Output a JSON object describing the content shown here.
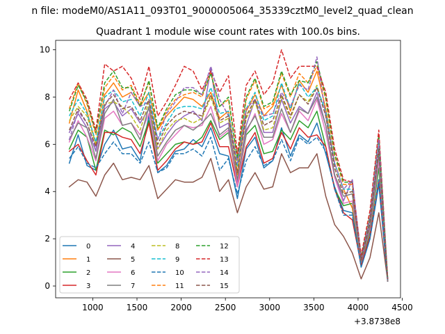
{
  "chart_data": {
    "type": "line",
    "suptitle": "n file: modeM0/AS1A11_093T01_9000005064_35339cztM0_level2_quad_clean",
    "title": "Quadrant 1 module wise count rates with 100.0s bins.",
    "xlabel": "",
    "ylabel": "",
    "x_offset_label": "+3.8738e8",
    "xlim": [
      580,
      4480
    ],
    "ylim": [
      -0.5,
      10.4
    ],
    "xticks": [
      1000,
      1500,
      2000,
      2500,
      3000,
      3500,
      4000,
      4500
    ],
    "yticks": [
      0,
      2,
      4,
      6,
      8,
      10
    ],
    "x": [
      735,
      835,
      935,
      1035,
      1135,
      1235,
      1335,
      1435,
      1535,
      1635,
      1735,
      1835,
      1935,
      2035,
      2135,
      2235,
      2335,
      2435,
      2535,
      2635,
      2735,
      2835,
      2935,
      3035,
      3135,
      3235,
      3335,
      3435,
      3535,
      3635,
      3735,
      3835,
      3935,
      4035,
      4135,
      4235,
      4335
    ],
    "legend_location": "lower-left",
    "series": [
      {
        "name": "0",
        "color": "#1f77b4",
        "dash": "solid",
        "values": [
          5.2,
          6.4,
          5.1,
          4.9,
          6.0,
          6.6,
          5.8,
          5.9,
          5.3,
          7.2,
          4.8,
          5.1,
          5.7,
          5.8,
          6.2,
          5.9,
          6.7,
          5.6,
          5.5,
          3.7,
          5.8,
          6.3,
          5.0,
          5.3,
          6.7,
          5.5,
          6.4,
          6.1,
          6.9,
          5.6,
          4.2,
          3.2,
          3.1,
          0.8,
          2.0,
          4.3,
          0.2
        ]
      },
      {
        "name": "1",
        "color": "#ff7f0e",
        "dash": "solid",
        "values": [
          6.9,
          8.3,
          7.4,
          6.0,
          8.1,
          8.6,
          8.0,
          8.2,
          7.6,
          8.2,
          6.6,
          7.2,
          7.6,
          8.0,
          7.9,
          7.6,
          8.2,
          7.1,
          7.4,
          4.7,
          7.4,
          8.1,
          7.2,
          7.6,
          8.5,
          7.4,
          8.7,
          8.2,
          9.1,
          7.5,
          5.2,
          4.1,
          3.3,
          1.1,
          2.9,
          5.6,
          0.3
        ]
      },
      {
        "name": "2",
        "color": "#2ca02c",
        "dash": "solid",
        "values": [
          5.8,
          6.6,
          6.3,
          4.9,
          6.6,
          6.4,
          6.7,
          6.5,
          5.9,
          7.0,
          5.2,
          5.6,
          6.0,
          6.1,
          6.0,
          6.3,
          7.0,
          6.2,
          6.5,
          4.2,
          6.4,
          6.8,
          5.6,
          5.7,
          6.6,
          6.2,
          7.0,
          6.7,
          7.4,
          5.9,
          4.1,
          3.4,
          3.5,
          0.9,
          2.3,
          5.0,
          0.2
        ]
      },
      {
        "name": "3",
        "color": "#d62728",
        "dash": "solid",
        "values": [
          5.7,
          6.0,
          5.3,
          4.7,
          6.5,
          6.5,
          6.3,
          6.2,
          5.6,
          6.9,
          4.9,
          5.3,
          5.8,
          6.1,
          6.0,
          6.1,
          6.9,
          5.9,
          5.9,
          4.2,
          5.9,
          6.5,
          5.2,
          5.4,
          6.5,
          5.8,
          6.7,
          6.3,
          6.4,
          5.9,
          4.1,
          3.1,
          2.8,
          0.9,
          2.1,
          4.5,
          0.2
        ]
      },
      {
        "name": "4",
        "color": "#9467bd",
        "dash": "solid",
        "values": [
          6.5,
          7.3,
          6.7,
          5.7,
          7.5,
          7.8,
          7.2,
          7.5,
          6.9,
          7.5,
          5.8,
          6.4,
          6.9,
          7.2,
          7.4,
          7.0,
          9.2,
          6.7,
          6.9,
          4.4,
          6.8,
          7.9,
          6.5,
          6.5,
          7.9,
          6.9,
          7.6,
          7.3,
          8.2,
          6.8,
          4.7,
          3.6,
          4.5,
          1.1,
          2.6,
          5.7,
          0.3
        ]
      },
      {
        "name": "5",
        "color": "#8c564b",
        "dash": "solid",
        "values": [
          4.2,
          4.5,
          4.4,
          3.8,
          4.7,
          5.2,
          4.5,
          4.6,
          4.5,
          5.1,
          3.7,
          4.1,
          4.5,
          4.4,
          4.4,
          4.6,
          5.4,
          4.0,
          4.5,
          3.1,
          4.2,
          4.8,
          4.1,
          4.2,
          5.6,
          4.8,
          5.0,
          5.0,
          5.6,
          3.8,
          2.6,
          2.1,
          1.4,
          0.3,
          1.2,
          3.1,
          0.2
        ]
      },
      {
        "name": "6",
        "color": "#e377c2",
        "dash": "solid",
        "values": [
          6.1,
          7.0,
          6.3,
          5.3,
          7.1,
          7.4,
          6.8,
          6.9,
          6.4,
          7.3,
          5.3,
          6.0,
          6.4,
          6.8,
          6.7,
          6.8,
          7.6,
          6.3,
          6.6,
          4.2,
          6.5,
          7.3,
          6.0,
          6.2,
          7.3,
          6.5,
          7.4,
          7.0,
          7.9,
          6.5,
          4.6,
          3.5,
          3.6,
          1.0,
          2.4,
          5.3,
          0.2
        ]
      },
      {
        "name": "7",
        "color": "#7f7f7f",
        "dash": "solid",
        "values": [
          6.2,
          6.9,
          6.7,
          5.4,
          7.3,
          7.9,
          6.8,
          6.9,
          6.2,
          7.6,
          5.5,
          6.1,
          6.6,
          6.8,
          6.6,
          6.9,
          7.3,
          6.4,
          6.7,
          4.5,
          6.6,
          7.2,
          6.3,
          6.3,
          7.5,
          6.5,
          7.5,
          7.3,
          8.0,
          6.8,
          4.7,
          3.8,
          3.9,
          1.0,
          2.5,
          5.6,
          0.2
        ]
      },
      {
        "name": "8",
        "color": "#bcbd22",
        "dash": "dashed",
        "values": [
          7.0,
          7.6,
          7.2,
          6.0,
          7.7,
          7.8,
          7.6,
          7.2,
          6.6,
          7.8,
          5.8,
          6.6,
          7.0,
          7.1,
          6.9,
          7.1,
          8.0,
          6.9,
          7.1,
          4.9,
          7.1,
          7.8,
          6.6,
          6.7,
          8.0,
          7.1,
          8.1,
          7.8,
          8.5,
          7.2,
          5.0,
          3.9,
          4.0,
          1.1,
          2.7,
          5.9,
          0.3
        ]
      },
      {
        "name": "9",
        "color": "#17becf",
        "dash": "dashed",
        "values": [
          7.2,
          7.9,
          7.3,
          6.1,
          8.0,
          8.3,
          7.8,
          7.9,
          7.2,
          8.2,
          6.2,
          6.9,
          7.5,
          7.6,
          7.6,
          7.5,
          8.4,
          7.3,
          7.4,
          5.1,
          7.5,
          8.2,
          7.0,
          7.2,
          8.6,
          7.5,
          8.6,
          8.0,
          8.4,
          7.4,
          5.2,
          4.1,
          4.1,
          1.2,
          2.8,
          6.0,
          0.3
        ]
      },
      {
        "name": "10",
        "color": "#1f77b4",
        "dash": "dashed",
        "values": [
          5.4,
          5.9,
          5.2,
          5.0,
          5.6,
          6.1,
          5.6,
          5.6,
          5.2,
          6.1,
          4.8,
          5.0,
          5.6,
          5.6,
          5.8,
          5.5,
          6.3,
          4.9,
          5.4,
          3.9,
          5.3,
          5.9,
          5.1,
          5.3,
          6.2,
          5.3,
          6.3,
          6.0,
          6.3,
          5.7,
          4.1,
          3.0,
          3.0,
          0.8,
          2.0,
          4.5,
          0.2
        ]
      },
      {
        "name": "11",
        "color": "#ff7f0e",
        "dash": "dashed",
        "values": [
          7.5,
          8.6,
          7.7,
          6.4,
          8.4,
          8.9,
          8.3,
          8.5,
          7.7,
          8.6,
          6.6,
          7.4,
          7.9,
          8.1,
          8.2,
          8.0,
          9.0,
          7.6,
          7.9,
          5.3,
          7.9,
          8.7,
          7.5,
          7.7,
          9.0,
          8.0,
          9.0,
          8.6,
          9.3,
          7.9,
          5.5,
          4.3,
          4.3,
          1.2,
          2.9,
          6.3,
          0.3
        ]
      },
      {
        "name": "12",
        "color": "#2ca02c",
        "dash": "dashed",
        "values": [
          7.4,
          8.5,
          7.8,
          6.5,
          8.6,
          9.1,
          8.4,
          8.4,
          7.6,
          8.7,
          6.7,
          7.5,
          8.1,
          8.3,
          8.3,
          8.1,
          9.0,
          7.6,
          8.0,
          5.4,
          8.0,
          8.8,
          7.6,
          7.8,
          9.1,
          8.1,
          8.7,
          8.6,
          9.5,
          8.0,
          5.6,
          4.4,
          4.4,
          1.2,
          3.0,
          6.4,
          0.3
        ]
      },
      {
        "name": "13",
        "color": "#d62728",
        "dash": "dashed",
        "values": [
          7.9,
          8.6,
          7.9,
          6.6,
          9.4,
          9.1,
          9.3,
          8.8,
          7.9,
          9.3,
          7.2,
          7.8,
          8.5,
          9.3,
          9.1,
          8.3,
          9.1,
          8.2,
          8.9,
          5.6,
          8.5,
          9.1,
          8.1,
          8.6,
          10.0,
          8.8,
          9.3,
          9.3,
          9.3,
          8.2,
          5.8,
          4.5,
          4.4,
          1.3,
          3.2,
          6.6,
          0.3
        ]
      },
      {
        "name": "14",
        "color": "#9467bd",
        "dash": "dashed",
        "values": [
          6.2,
          7.4,
          6.9,
          5.8,
          7.6,
          8.3,
          7.3,
          8.2,
          7.6,
          7.8,
          6.2,
          7.3,
          7.8,
          8.4,
          8.4,
          8.1,
          9.3,
          7.9,
          7.2,
          5.2,
          7.5,
          7.9,
          7.2,
          7.3,
          8.2,
          7.6,
          8.5,
          8.3,
          9.7,
          7.2,
          5.2,
          4.1,
          4.5,
          1.1,
          2.9,
          6.2,
          0.3
        ]
      },
      {
        "name": "15",
        "color": "#8c564b",
        "dash": "dashed",
        "values": [
          6.6,
          7.5,
          6.9,
          5.9,
          7.7,
          8.1,
          7.5,
          7.6,
          7.0,
          7.9,
          6.0,
          6.8,
          7.2,
          7.4,
          7.3,
          7.2,
          8.1,
          7.0,
          7.2,
          4.8,
          7.2,
          7.9,
          6.8,
          7.0,
          8.1,
          7.2,
          8.1,
          7.7,
          8.4,
          7.2,
          5.0,
          3.9,
          4.0,
          1.1,
          2.7,
          5.8,
          0.3
        ]
      }
    ]
  }
}
